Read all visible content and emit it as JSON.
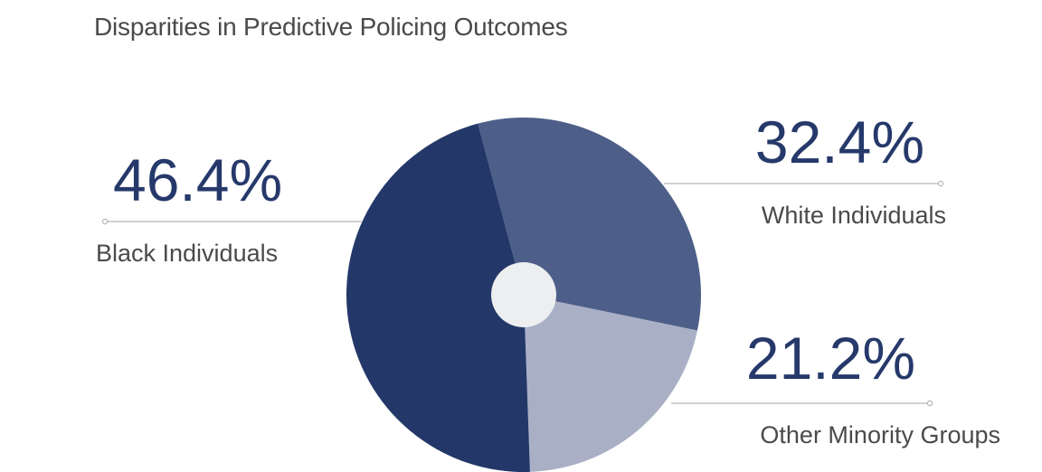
{
  "title": "Disparities in Predictive Policing Outcomes",
  "chart_data": {
    "type": "pie",
    "title": "Disparities in Predictive Policing Outcomes",
    "start_angle_deg": -15,
    "slices": [
      {
        "label": "White Individuals",
        "value": 32.4,
        "value_label": "32.4%",
        "color": "#4d5f88"
      },
      {
        "label": "Other Minority Groups",
        "value": 21.2,
        "value_label": "21.2%",
        "color": "#a9b0c6"
      },
      {
        "label": "Black Individuals",
        "value": 46.4,
        "value_label": "46.4%",
        "color": "#233869"
      }
    ],
    "center_hole_color": "#eceef0",
    "leader_line_color": "#b5b5b5",
    "value_text_color": "#26396b",
    "label_text_color": "#4a4a4a"
  }
}
